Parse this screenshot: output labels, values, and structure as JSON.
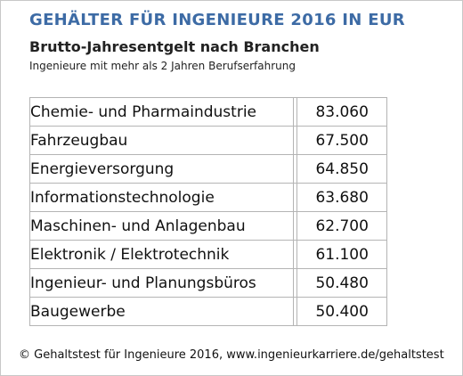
{
  "title": "GEHÄLTER FÜR INGENIEURE 2016 IN EUR",
  "subtitle": "Brutto-Jahresentgelt nach Branchen",
  "note": "Ingenieure mit mehr als 2 Jahren Berufserfahrung",
  "footer": "© Gehaltstest für Ingenieure 2016, www.ingenieurkarriere.de/gehaltstest",
  "colors": {
    "title": "#3d6ba5",
    "border": "#b4b4b4"
  },
  "rows": [
    {
      "branche": "Chemie- und Pharmaindustrie",
      "gehalt": "83.060"
    },
    {
      "branche": "Fahrzeugbau",
      "gehalt": "67.500"
    },
    {
      "branche": "Energieversorgung",
      "gehalt": "64.850"
    },
    {
      "branche": "Informationstechnologie",
      "gehalt": "63.680"
    },
    {
      "branche": "Maschinen- und Anlagenbau",
      "gehalt": "62.700"
    },
    {
      "branche": "Elektronik / Elektrotechnik",
      "gehalt": "61.100"
    },
    {
      "branche": "Ingenieur- und Planungsbüros",
      "gehalt": "50.480"
    },
    {
      "branche": "Baugewerbe",
      "gehalt": "50.400"
    }
  ],
  "chart_data": {
    "type": "table",
    "title": "GEHÄLTER FÜR INGENIEURE 2016 IN EUR",
    "subtitle": "Brutto-Jahresentgelt nach Branchen",
    "categories": [
      "Chemie- und Pharmaindustrie",
      "Fahrzeugbau",
      "Energieversorgung",
      "Informationstechnologie",
      "Maschinen- und Anlagenbau",
      "Elektronik / Elektrotechnik",
      "Ingenieur- und Planungsbüros",
      "Baugewerbe"
    ],
    "values": [
      83060,
      67500,
      64850,
      63680,
      62700,
      61100,
      50480,
      50400
    ]
  }
}
